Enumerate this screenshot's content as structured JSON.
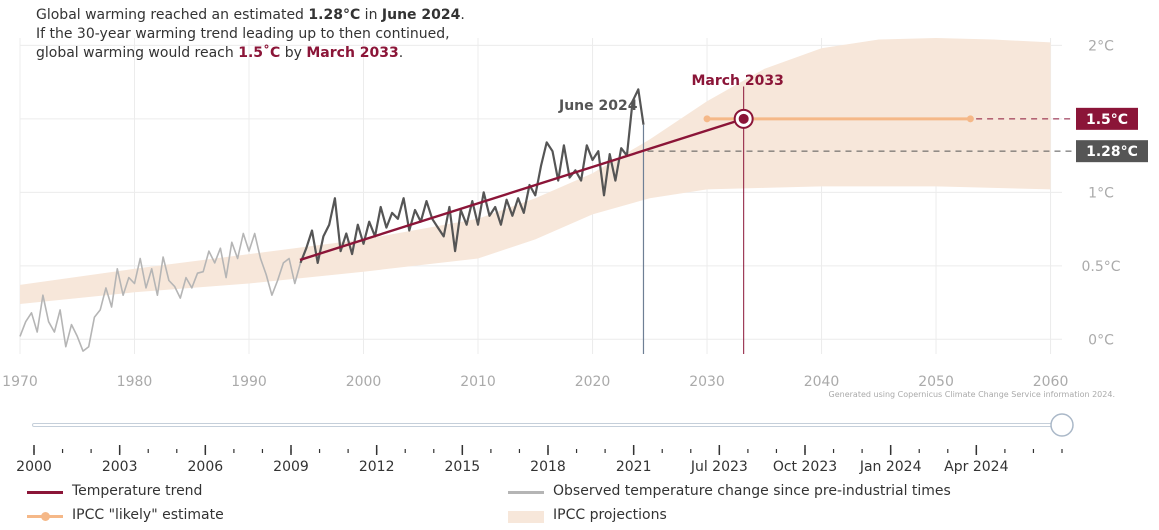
{
  "summary": {
    "part1": "Global warming reached an estimated ",
    "current_value": "1.28°C",
    "part2": " in ",
    "current_date": "June 2024",
    "part3": ".",
    "line2": "If the 30-year warming trend leading up to then continued,",
    "part4": "global warming would reach ",
    "target_value": "1.5˚C",
    "part5": " by ",
    "target_date": "March 2033",
    "part6": "."
  },
  "credit": "Generated using Copernicus Climate Change Service information 2024.",
  "legend": [
    {
      "label": "Temperature trend",
      "color": "#8b1538",
      "kind": "line"
    },
    {
      "label": "Observed temperature change since pre-industrial times",
      "color": "#b5b5b5",
      "kind": "line"
    },
    {
      "label": "IPCC \"likely\" estimate",
      "color": "#f5b888",
      "kind": "dot-line"
    },
    {
      "label": "IPCC projections",
      "color": "#f7e7da",
      "kind": "band"
    }
  ],
  "slider": {
    "tick_labels": [
      "2000",
      "2003",
      "2006",
      "2009",
      "2012",
      "2015",
      "2018",
      "2021",
      "Jul 2023",
      "Oct 2023",
      "Jan 2024",
      "Apr 2024"
    ],
    "position": 1.0
  },
  "colors": {
    "trend": "#8b1538",
    "observed_recent": "#555555",
    "observed_early": "#b5b5b5",
    "ipcc": "#f5b888",
    "band": "#f7e7da",
    "current_badge": "#555555",
    "target_badge": "#8b1538"
  },
  "chart_data": {
    "type": "line",
    "x_ticks": [
      1970,
      1980,
      1990,
      2000,
      2010,
      2020,
      2030,
      2040,
      2050,
      2060
    ],
    "y_ticks": [
      0,
      0.5,
      1,
      1.5,
      2
    ],
    "y_tick_labels": [
      "0°C",
      "0.5°C",
      "1°C",
      "1.5°C",
      "2°C"
    ],
    "xlim": [
      1970,
      2061
    ],
    "ylim": [
      -0.1,
      2.05
    ],
    "grid": true,
    "annotations": {
      "current_label": "June 2024",
      "current_x": 2024.45,
      "target_label": "March 2033",
      "target_x": 2033.2,
      "current_badge": "1.28°C",
      "current_y": 1.28,
      "target_badge": "1.5°C",
      "target_y": 1.5
    },
    "series": [
      {
        "name": "Temperature trend",
        "x": [
          1994.45,
          2033.2
        ],
        "y": [
          0.54,
          1.5
        ]
      },
      {
        "name": "IPCC \"likely\" estimate",
        "x": [
          2030,
          2053
        ],
        "y": [
          1.5,
          1.5
        ]
      },
      {
        "name": "IPCC projections",
        "x": [
          1970,
          1980,
          1990,
          2000,
          2010,
          2015,
          2020,
          2025,
          2030,
          2035,
          2040,
          2045,
          2050,
          2055,
          2060
        ],
        "y_low": [
          0.24,
          0.32,
          0.38,
          0.46,
          0.55,
          0.68,
          0.85,
          0.96,
          1.02,
          1.03,
          1.04,
          1.04,
          1.04,
          1.03,
          1.02
        ],
        "y_high": [
          0.37,
          0.48,
          0.58,
          0.68,
          0.82,
          0.96,
          1.13,
          1.36,
          1.62,
          1.84,
          1.98,
          2.04,
          2.05,
          2.04,
          2.02
        ]
      },
      {
        "name": "Observed temperature change since pre-industrial times",
        "x": [
          1970.0,
          1970.5,
          1971.0,
          1971.5,
          1972.0,
          1972.5,
          1973.0,
          1973.5,
          1974.0,
          1974.5,
          1975.0,
          1975.5,
          1976.0,
          1976.5,
          1977.0,
          1977.5,
          1978.0,
          1978.5,
          1979.0,
          1979.5,
          1980.0,
          1980.5,
          1981.0,
          1981.5,
          1982.0,
          1982.5,
          1983.0,
          1983.5,
          1984.0,
          1984.5,
          1985.0,
          1985.5,
          1986.0,
          1986.5,
          1987.0,
          1987.5,
          1988.0,
          1988.5,
          1989.0,
          1989.5,
          1990.0,
          1990.5,
          1991.0,
          1991.5,
          1992.0,
          1992.5,
          1993.0,
          1993.5,
          1994.0,
          1994.5,
          1995.0,
          1995.5,
          1996.0,
          1996.5,
          1997.0,
          1997.5,
          1998.0,
          1998.5,
          1999.0,
          1999.5,
          2000.0,
          2000.5,
          2001.0,
          2001.5,
          2002.0,
          2002.5,
          2003.0,
          2003.5,
          2004.0,
          2004.5,
          2005.0,
          2005.5,
          2006.0,
          2006.5,
          2007.0,
          2007.5,
          2008.0,
          2008.5,
          2009.0,
          2009.5,
          2010.0,
          2010.5,
          2011.0,
          2011.5,
          2012.0,
          2012.5,
          2013.0,
          2013.5,
          2014.0,
          2014.5,
          2015.0,
          2015.5,
          2016.0,
          2016.5,
          2017.0,
          2017.5,
          2018.0,
          2018.5,
          2019.0,
          2019.5,
          2020.0,
          2020.5,
          2021.0,
          2021.5,
          2022.0,
          2022.5,
          2023.0,
          2023.5,
          2024.0,
          2024.45
        ],
        "y": [
          0.02,
          0.12,
          0.18,
          0.05,
          0.3,
          0.12,
          0.05,
          0.2,
          -0.05,
          0.1,
          0.02,
          -0.08,
          -0.05,
          0.15,
          0.2,
          0.35,
          0.22,
          0.48,
          0.3,
          0.42,
          0.38,
          0.55,
          0.35,
          0.48,
          0.3,
          0.56,
          0.4,
          0.36,
          0.28,
          0.42,
          0.35,
          0.45,
          0.46,
          0.6,
          0.52,
          0.62,
          0.42,
          0.66,
          0.55,
          0.72,
          0.6,
          0.72,
          0.55,
          0.44,
          0.3,
          0.4,
          0.52,
          0.55,
          0.38,
          0.52,
          0.62,
          0.74,
          0.52,
          0.7,
          0.78,
          0.96,
          0.6,
          0.72,
          0.58,
          0.78,
          0.65,
          0.8,
          0.7,
          0.9,
          0.76,
          0.86,
          0.82,
          0.96,
          0.74,
          0.88,
          0.8,
          0.94,
          0.82,
          0.76,
          0.7,
          0.9,
          0.6,
          0.88,
          0.78,
          0.94,
          0.78,
          1.0,
          0.84,
          0.9,
          0.78,
          0.95,
          0.84,
          0.96,
          0.86,
          1.05,
          0.98,
          1.18,
          1.34,
          1.28,
          1.08,
          1.32,
          1.1,
          1.15,
          1.08,
          1.32,
          1.22,
          1.28,
          0.98,
          1.26,
          1.08,
          1.3,
          1.25,
          1.62,
          1.7,
          1.46
        ]
      }
    ]
  }
}
